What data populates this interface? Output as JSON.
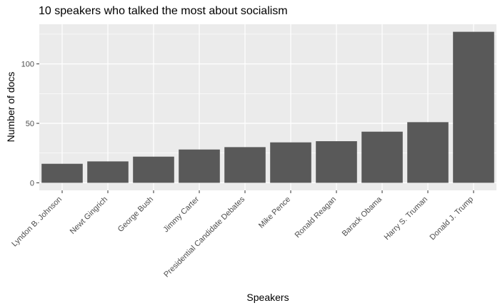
{
  "chart_data": {
    "type": "bar",
    "title": "10 speakers who talked the most about socialism",
    "xlabel": "Speakers",
    "ylabel": "Number of docs",
    "categories": [
      "Lyndon B. Johnson",
      "Newt Gingrich",
      "George Bush",
      "Jimmy Carter",
      "Presidential Candidate Debates",
      "Mike Pence",
      "Ronald Reagan",
      "Barack Obama",
      "Harry S. Truman",
      "Donald J. Trump"
    ],
    "values": [
      16,
      18,
      22,
      28,
      30,
      34,
      35,
      43,
      51,
      127
    ],
    "yticks": [
      0,
      50,
      100
    ],
    "ylim": [
      -6.35,
      133.35
    ],
    "grid": true,
    "colors": {
      "bar": "#595959",
      "panel": "#ebebeb",
      "grid": "#ffffff"
    }
  }
}
